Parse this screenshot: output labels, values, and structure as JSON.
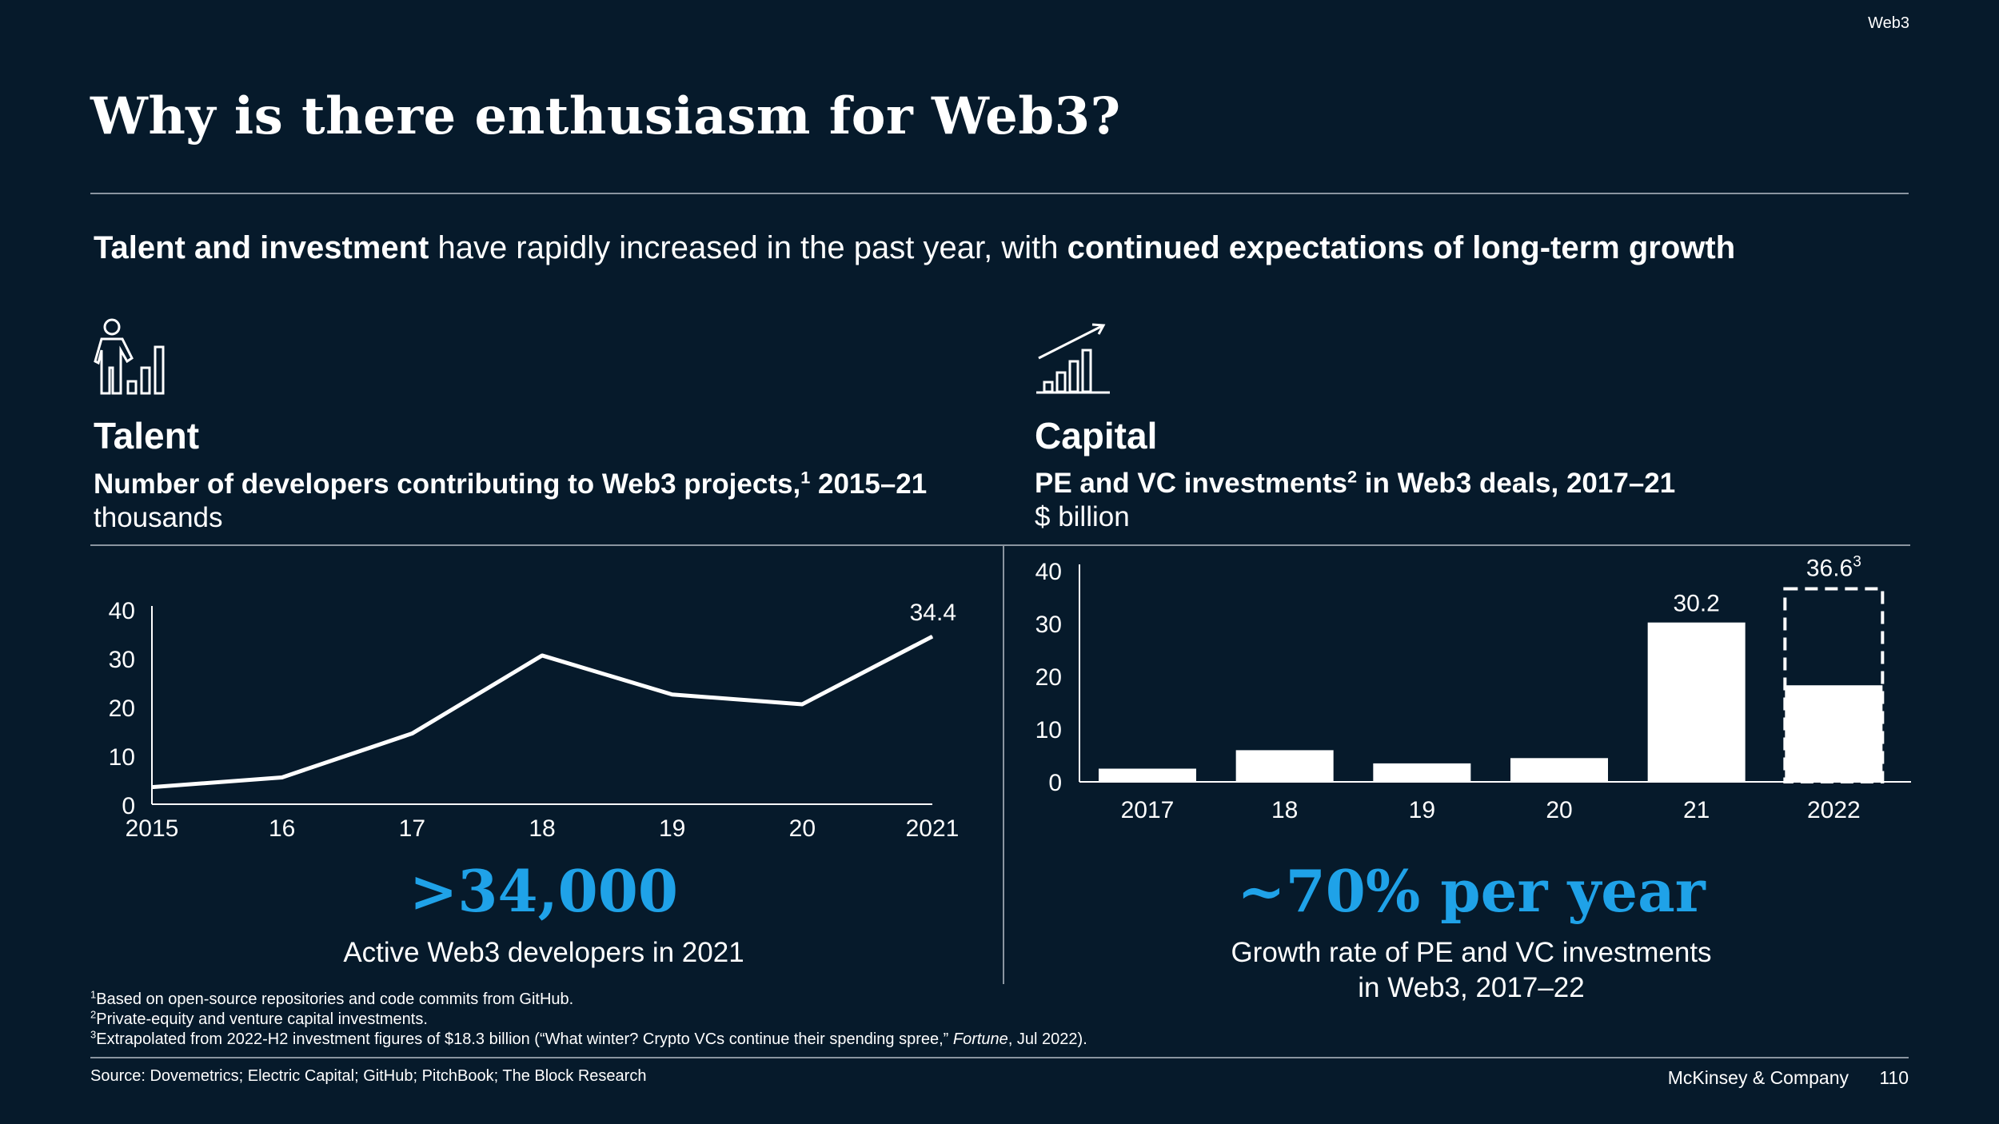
{
  "header": {
    "tag": "Web3",
    "title": "Why is there enthusiasm for Web3?"
  },
  "subtitle": {
    "bold1": "Talent and investment",
    "normal": " have rapidly increased in the past year, with ",
    "bold2": "continued expectations of long-term growth"
  },
  "talent": {
    "icon": "person-bar-chart-icon",
    "section": "Talent",
    "chart_title": "Number of developers contributing to Web3 projects,",
    "chart_title_sup": "1",
    "chart_title_years": " 2015–21",
    "unit": "thousands",
    "headline": ">34,000",
    "caption": "Active Web3 developers in 2021"
  },
  "capital": {
    "icon": "rising-bar-chart-icon",
    "section": "Capital",
    "chart_title": "PE and VC investments",
    "chart_title_sup": "2",
    "chart_title_rest": " in Web3 deals, 2017–21",
    "unit": "$ billion",
    "headline": "~70% per year",
    "caption_line1": "Growth rate of PE and VC investments",
    "caption_line2": "in Web3, 2017–22"
  },
  "chart_data": [
    {
      "type": "line",
      "title": "Number of developers contributing to Web3 projects, 2015–21",
      "ylabel": "thousands",
      "x": [
        "2015",
        "16",
        "17",
        "18",
        "19",
        "20",
        "2021"
      ],
      "values": [
        3.5,
        5.5,
        14.5,
        30.5,
        22.5,
        20.5,
        34.4
      ],
      "ylim": [
        0,
        40
      ],
      "yticks": [
        0,
        10,
        20,
        30,
        40
      ],
      "data_labels": {
        "6": "34.4"
      }
    },
    {
      "type": "bar",
      "title": "PE and VC investments in Web3 deals, 2017–21",
      "ylabel": "$ billion",
      "categories": [
        "2017",
        "18",
        "19",
        "20",
        "21",
        "2022"
      ],
      "values": [
        2.5,
        6,
        3.5,
        4.5,
        30.2,
        18.3
      ],
      "projected": {
        "category": "2022",
        "total": 36.6,
        "label": "36.6",
        "label_sup": "3"
      },
      "ylim": [
        0,
        40
      ],
      "yticks": [
        0,
        10,
        20,
        30,
        40
      ],
      "data_labels": {
        "4": "30.2"
      }
    }
  ],
  "footnotes": [
    {
      "num": "1",
      "text": "Based on open-source repositories and code commits from GitHub."
    },
    {
      "num": "2",
      "text": "Private-equity and venture capital investments."
    },
    {
      "num": "3",
      "text_before": "Extrapolated from 2022-H2 investment figures of $18.3 billion (“What winter? Crypto VCs continue their spending spree,” ",
      "text_italic": "Fortune",
      "text_after": ", Jul 2022)."
    }
  ],
  "footer": {
    "source": "Source: Dovemetrics; Electric Capital; GitHub; PitchBook; The Block Research",
    "brand": "McKinsey & Company",
    "page": "110"
  },
  "colors": {
    "background": "#061a2b",
    "accent": "#1fa2e8",
    "rule": "#8a95a0"
  }
}
